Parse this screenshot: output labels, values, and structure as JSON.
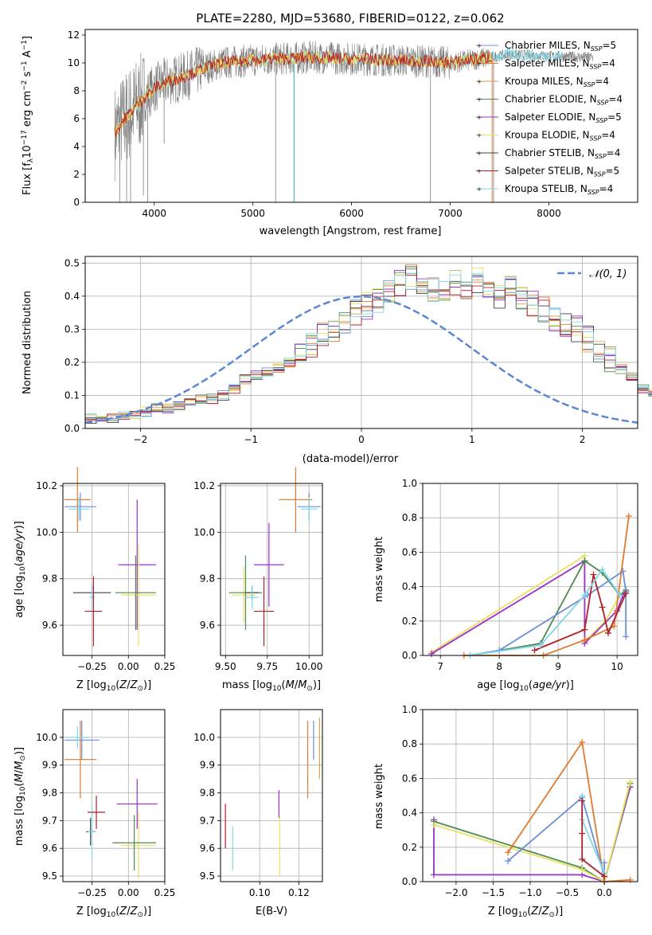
{
  "figure_title": "PLATE=2280, MJD=53680, FIBERID=0122, z=0.062",
  "colors": {
    "s1": "#6a8fd8",
    "s2": "#e07a2e",
    "s3": "#d9a24a",
    "s4": "#4f8a4f",
    "s5": "#9b30c8",
    "s6": "#e8e060",
    "s7": "#404040",
    "s8": "#b0202a",
    "s9": "#80d8e8",
    "data": "#7f7f7f",
    "normal": "#5b86d6",
    "grid": "#b0b0b0"
  },
  "chart_data": [
    {
      "type": "line",
      "title": "PLATE=2280, MJD=53680, FIBERID=0122, z=0.062",
      "xlabel": "wavelength [Angstrom, rest frame]",
      "ylabel": "Flux [f_λ 10^−17 erg cm^−2 s^−1 A^−1]",
      "xlim": [
        3300,
        8900
      ],
      "ylim": [
        0,
        12.4
      ],
      "xticks": [
        "4000",
        "5000",
        "6000",
        "7000",
        "8000"
      ],
      "yticks": [
        "0",
        "2",
        "4",
        "6",
        "8",
        "10",
        "12"
      ],
      "grid": false,
      "legend_position": "right",
      "legend": [
        "Chabrier MILES, N_SSP=5",
        "Salpeter MILES, N_SSP=4",
        "Kroupa MILES, N_SSP=4",
        "Chabrier ELODIE, N_SSP=4",
        "Salpeter ELODIE, N_SSP=5",
        "Kroupa ELODIE, N_SSP=4",
        "Chabrier STELIB, N_SSP=4",
        "Salpeter STELIB, N_SSP=5",
        "Kroupa STELIB, N_SSP=4"
      ],
      "continuum": {
        "x": [
          3600,
          3700,
          3800,
          3900,
          4000,
          4100,
          4200,
          4300,
          4400,
          4500,
          4700,
          5000,
          5300,
          5600,
          6000,
          6400,
          6800,
          7000,
          7200,
          7400,
          7600,
          8000,
          8400
        ],
        "y": [
          5.0,
          6.0,
          6.8,
          7.5,
          8.2,
          8.6,
          8.8,
          9.0,
          9.3,
          9.6,
          10.0,
          10.2,
          10.3,
          10.4,
          10.3,
          10.2,
          10.1,
          10.0,
          10.2,
          10.4,
          10.6,
          10.5,
          10.4
        ]
      }
    },
    {
      "type": "histogram",
      "xlabel": "(data-model)/error",
      "ylabel": "Normed distribution",
      "xlim": [
        -2.5,
        2.5
      ],
      "ylim": [
        0,
        0.52
      ],
      "xticks": [
        "−2",
        "−1",
        "0",
        "1",
        "2"
      ],
      "yticks": [
        "0.0",
        "0.1",
        "0.2",
        "0.3",
        "0.4",
        "0.5"
      ],
      "grid": true,
      "legend_position": "top-right",
      "legend": [
        "𝒩(0, 1)"
      ],
      "bin_width": 0.1,
      "bin_start": -2.5,
      "density": [
        0.03,
        0.03,
        0.03,
        0.04,
        0.04,
        0.05,
        0.06,
        0.06,
        0.07,
        0.08,
        0.09,
        0.09,
        0.1,
        0.12,
        0.15,
        0.16,
        0.17,
        0.18,
        0.2,
        0.23,
        0.25,
        0.28,
        0.29,
        0.31,
        0.35,
        0.37,
        0.39,
        0.41,
        0.44,
        0.46,
        0.43,
        0.42,
        0.41,
        0.44,
        0.43,
        0.45,
        0.42,
        0.4,
        0.43,
        0.4,
        0.38,
        0.36,
        0.33,
        0.31,
        0.3,
        0.27,
        0.24,
        0.21,
        0.18,
        0.16,
        0.12,
        0.11,
        0.09,
        0.08,
        0.07,
        0.06,
        0.05,
        0.04,
        0.04,
        0.03,
        0.03,
        0.03,
        0.03
      ]
    },
    {
      "type": "scatter",
      "xlabel": "Z [log10(Z/Z⊙)]",
      "ylabel": "age [log10(age/yr)]",
      "xlim": [
        -0.45,
        0.25
      ],
      "ylim": [
        9.47,
        10.21
      ],
      "xticks": [
        "−0.25",
        "0.00",
        "0.25"
      ],
      "yticks": [
        "9.6",
        "9.8",
        "10.0",
        "10.2"
      ],
      "grid": true,
      "points": [
        {
          "s": 1,
          "x": -0.33,
          "y": 10.11,
          "xe": 0.11,
          "ye": 0.06
        },
        {
          "s": 2,
          "x": -0.35,
          "y": 10.14,
          "xe": 0.09,
          "ye": 0.14
        },
        {
          "s": 9,
          "x": -0.34,
          "y": 10.1,
          "xe": 0.07,
          "ye": 0.05
        },
        {
          "s": 5,
          "x": 0.06,
          "y": 9.86,
          "xe": 0.13,
          "ye": 0.28
        },
        {
          "s": 6,
          "x": 0.07,
          "y": 9.73,
          "xe": 0.12,
          "ye": 0.22
        },
        {
          "s": 4,
          "x": 0.05,
          "y": 9.74,
          "xe": 0.14,
          "ye": 0.16
        },
        {
          "s": 7,
          "x": -0.25,
          "y": 9.74,
          "xe": 0.13,
          "ye": 0.03
        },
        {
          "s": 9,
          "x": -0.25,
          "y": 9.72,
          "xe": 0.02,
          "ye": 0.05
        },
        {
          "s": 8,
          "x": -0.24,
          "y": 9.66,
          "xe": 0.06,
          "ye": 0.15
        }
      ]
    },
    {
      "type": "scatter",
      "xlabel": "mass [log10(M/M⊙)]",
      "ylabel": "",
      "xlim": [
        9.47,
        10.08
      ],
      "ylim": [
        9.47,
        10.21
      ],
      "xticks": [
        "9.50",
        "9.75",
        "10.00"
      ],
      "yticks": [
        "9.6",
        "9.8",
        "10.0",
        "10.2"
      ],
      "grid": true,
      "points": [
        {
          "s": 1,
          "x": 10.0,
          "y": 10.11,
          "xe": 0.07,
          "ye": 0.06
        },
        {
          "s": 2,
          "x": 9.92,
          "y": 10.14,
          "xe": 0.1,
          "ye": 0.14
        },
        {
          "s": 9,
          "x": 10.0,
          "y": 10.1,
          "xe": 0.05,
          "ye": 0.05
        },
        {
          "s": 5,
          "x": 9.76,
          "y": 9.86,
          "xe": 0.09,
          "ye": 0.18
        },
        {
          "s": 6,
          "x": 9.61,
          "y": 9.73,
          "xe": 0.07,
          "ye": 0.12
        },
        {
          "s": 4,
          "x": 9.62,
          "y": 9.74,
          "xe": 0.1,
          "ye": 0.16
        },
        {
          "s": 7,
          "x": 9.66,
          "y": 9.74,
          "xe": 0.04,
          "ye": 0.03
        },
        {
          "s": 9,
          "x": 9.66,
          "y": 9.72,
          "xe": 0.04,
          "ye": 0.05
        },
        {
          "s": 8,
          "x": 9.73,
          "y": 9.66,
          "xe": 0.06,
          "ye": 0.15
        }
      ]
    },
    {
      "type": "line",
      "xlabel": "age [log10(age/yr)]",
      "ylabel": "mass weight",
      "xlim": [
        6.7,
        10.35
      ],
      "ylim": [
        0,
        1.0
      ],
      "xticks": [
        "7",
        "8",
        "9",
        "10"
      ],
      "yticks": [
        "0.0",
        "0.2",
        "0.4",
        "0.6",
        "0.8",
        "1.0"
      ],
      "grid": true,
      "series": [
        {
          "s": 6,
          "x": [
            6.85,
            9.45,
            9.45,
            9.8,
            10.05,
            10.15
          ],
          "y": [
            0.02,
            0.58,
            0.08,
            0.2,
            0.35,
            0.38
          ]
        },
        {
          "s": 5,
          "x": [
            6.85,
            9.45,
            9.45,
            10.0,
            10.1,
            10.15
          ],
          "y": [
            0.01,
            0.55,
            0.07,
            0.26,
            0.35,
            0.37
          ]
        },
        {
          "s": 4,
          "x": [
            7.5,
            8.7,
            9.45,
            9.75,
            10.05,
            10.15
          ],
          "y": [
            0.0,
            0.07,
            0.55,
            0.48,
            0.35,
            0.38
          ]
        },
        {
          "s": 1,
          "x": [
            7.5,
            8.0,
            9.5,
            10.1,
            10.15,
            10.15
          ],
          "y": [
            0.0,
            0.03,
            0.35,
            0.49,
            0.37,
            0.11
          ]
        },
        {
          "s": 2,
          "x": [
            7.4,
            8.75,
            9.45,
            9.95,
            10.2
          ],
          "y": [
            0.0,
            0.0,
            0.09,
            0.17,
            0.81
          ]
        },
        {
          "s": 8,
          "x": [
            8.6,
            9.45,
            9.6,
            9.75,
            9.85,
            10.15
          ],
          "y": [
            0.03,
            0.15,
            0.47,
            0.28,
            0.13,
            0.36
          ]
        },
        {
          "s": 9,
          "x": [
            7.5,
            8.7,
            9.45,
            9.75,
            10.05
          ],
          "y": [
            0.0,
            0.06,
            0.35,
            0.5,
            0.35
          ]
        }
      ]
    },
    {
      "type": "scatter",
      "xlabel": "Z [log10(Z/Z⊙)]",
      "ylabel": "mass [log10(M/M⊙)]",
      "xlim": [
        -0.45,
        0.25
      ],
      "ylim": [
        9.48,
        10.1
      ],
      "xticks": [
        "−0.25",
        "0.00",
        "0.25"
      ],
      "yticks": [
        "9.5",
        "9.6",
        "9.7",
        "9.8",
        "9.9",
        "10.0"
      ],
      "grid": true,
      "points": [
        {
          "s": 1,
          "x": -0.32,
          "y": 9.99,
          "xe": 0.12,
          "ye": 0.07
        },
        {
          "s": 2,
          "x": -0.33,
          "y": 9.92,
          "xe": 0.11,
          "ye": 0.14
        },
        {
          "s": 9,
          "x": -0.35,
          "y": 10.0,
          "xe": 0.08,
          "ye": 0.04
        },
        {
          "s": 5,
          "x": 0.06,
          "y": 9.76,
          "xe": 0.14,
          "ye": 0.09
        },
        {
          "s": 6,
          "x": 0.07,
          "y": 9.61,
          "xe": 0.12,
          "ye": 0.12
        },
        {
          "s": 4,
          "x": 0.04,
          "y": 9.62,
          "xe": 0.15,
          "ye": 0.1
        },
        {
          "s": 7,
          "x": -0.26,
          "y": 9.66,
          "xe": 0.03,
          "ye": 0.05
        },
        {
          "s": 9,
          "x": -0.25,
          "y": 9.66,
          "xe": 0.03,
          "ye": 0.1
        },
        {
          "s": 8,
          "x": -0.22,
          "y": 9.73,
          "xe": 0.06,
          "ye": 0.06
        }
      ]
    },
    {
      "type": "scatter",
      "xlabel": "E(B-V)",
      "ylabel": "",
      "xlim": [
        0.08,
        0.132
      ],
      "ylim": [
        9.48,
        10.1
      ],
      "xticks": [
        "0.10",
        "0.12"
      ],
      "yticks": [
        "9.5",
        "9.6",
        "9.7",
        "9.8",
        "9.9",
        "10.0"
      ],
      "grid": true,
      "points": [
        {
          "s": 8,
          "x": 0.0825,
          "y": 9.68,
          "xe": 0.0,
          "ye": 0.08
        },
        {
          "s": 9,
          "x": 0.0862,
          "y": 9.6,
          "xe": 0.0,
          "ye": 0.08
        },
        {
          "s": 5,
          "x": 0.1098,
          "y": 9.76,
          "xe": 0.0,
          "ye": 0.05
        },
        {
          "s": 6,
          "x": 0.1102,
          "y": 9.61,
          "xe": 0.0,
          "ye": 0.11
        },
        {
          "s": 2,
          "x": 0.1245,
          "y": 9.92,
          "xe": 0.0,
          "ye": 0.14
        },
        {
          "s": 1,
          "x": 0.1275,
          "y": 9.99,
          "xe": 0.0,
          "ye": 0.07
        },
        {
          "s": 3,
          "x": 0.1305,
          "y": 9.96,
          "xe": 0.0,
          "ye": 0.11
        }
      ]
    },
    {
      "type": "line",
      "xlabel": "Z [log10(Z/Z⊙)]",
      "ylabel": "mass weight",
      "xlim": [
        -2.45,
        0.45
      ],
      "ylim": [
        0,
        1.0
      ],
      "xticks": [
        "−2.0",
        "−1.5",
        "−1.0",
        "−0.5",
        "0.0"
      ],
      "yticks": [
        "0.0",
        "0.2",
        "0.4",
        "0.6",
        "0.8",
        "1.0"
      ],
      "grid": true,
      "series": [
        {
          "s": 5,
          "x": [
            -2.3,
            -2.3,
            -0.3,
            0.0,
            0.35
          ],
          "y": [
            0.36,
            0.04,
            0.04,
            0.0,
            0.55
          ]
        },
        {
          "s": 4,
          "x": [
            -2.3,
            -0.3,
            0.0,
            0.35
          ],
          "y": [
            0.35,
            0.08,
            0.0,
            0.57
          ]
        },
        {
          "s": 6,
          "x": [
            -2.3,
            -0.3,
            0.0,
            0.35
          ],
          "y": [
            0.33,
            0.07,
            0.0,
            0.58
          ]
        },
        {
          "s": 2,
          "x": [
            -1.3,
            -0.3,
            0.0,
            0.35
          ],
          "y": [
            0.17,
            0.81,
            0.0,
            0.01
          ]
        },
        {
          "s": 1,
          "x": [
            -1.3,
            -0.3,
            0.0,
            0.0
          ],
          "y": [
            0.12,
            0.49,
            0.03,
            0.11
          ]
        },
        {
          "s": 9,
          "x": [
            -0.3,
            -0.3,
            0.0
          ],
          "y": [
            0.5,
            0.36,
            0.05
          ]
        },
        {
          "s": 8,
          "x": [
            -0.3,
            -0.3,
            -0.3,
            0.0
          ],
          "y": [
            0.47,
            0.28,
            0.13,
            0.03
          ]
        }
      ]
    }
  ]
}
